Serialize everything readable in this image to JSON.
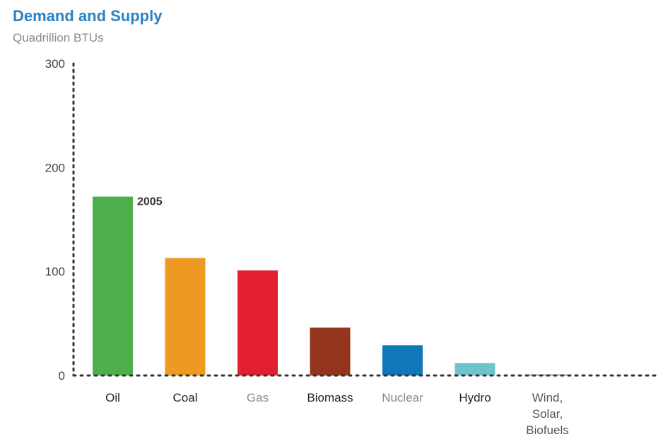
{
  "chart_data": {
    "type": "bar",
    "title": "Demand and Supply",
    "subtitle": "Quadrillion BTUs",
    "ylim": [
      0,
      300
    ],
    "yticks": [
      "0",
      "100",
      "200",
      "300"
    ],
    "categories": [
      {
        "label": [
          "Oil"
        ],
        "value": 172,
        "color": "#4caf4c",
        "label_color": "#222222"
      },
      {
        "label": [
          "Coal"
        ],
        "value": 113,
        "color": "#ee9a22",
        "label_color": "#222222"
      },
      {
        "label": [
          "Gas"
        ],
        "value": 101,
        "color": "#e21f32",
        "label_color": "#888888"
      },
      {
        "label": [
          "Biomass"
        ],
        "value": 46,
        "color": "#94341d",
        "label_color": "#222222"
      },
      {
        "label": [
          "Nuclear"
        ],
        "value": 29,
        "color": "#0f78b8",
        "label_color": "#888888"
      },
      {
        "label": [
          "Hydro"
        ],
        "value": 12,
        "color": "#6ec3cd",
        "label_color": "#222222"
      },
      {
        "label": [
          "Wind,",
          "Solar,",
          "Biofuels"
        ],
        "value": 1,
        "color": "#7d8fc4",
        "label_color": "#555555"
      }
    ],
    "annotation": {
      "text": "2005",
      "category_index": 0
    },
    "grid": false,
    "legend": "none"
  }
}
